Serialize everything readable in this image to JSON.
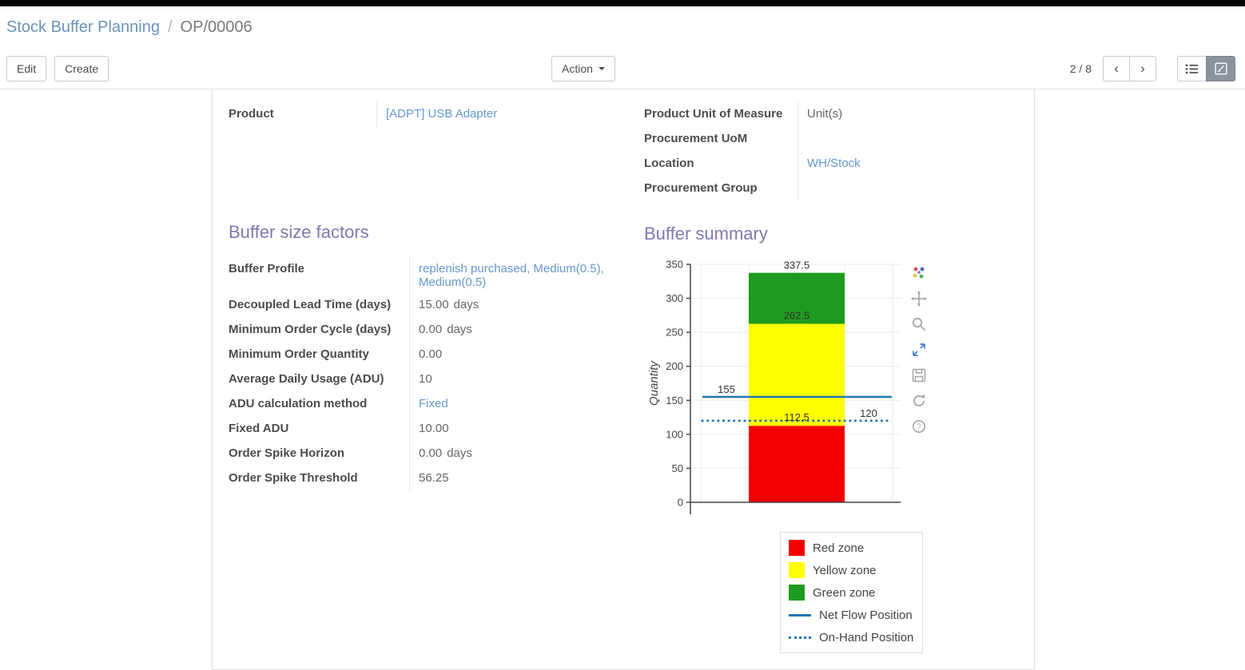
{
  "breadcrumb": {
    "parent": "Stock Buffer Planning",
    "separator": "/",
    "current": "OP/00006"
  },
  "toolbar": {
    "edit_label": "Edit",
    "create_label": "Create",
    "action_label": "Action",
    "pager": "2 / 8",
    "prev_icon": "‹",
    "next_icon": "›"
  },
  "form": {
    "top_left_fields": [
      {
        "label": "Product",
        "value": "[ADPT] USB Adapter",
        "link": true,
        "suffix": ""
      }
    ],
    "top_right_fields": [
      {
        "label": "Product Unit of Measure",
        "value": "Unit(s)",
        "link": false,
        "suffix": ""
      },
      {
        "label": "Procurement UoM",
        "value": "",
        "link": false,
        "suffix": ""
      },
      {
        "label": "Location",
        "value": "WH/Stock",
        "link": true,
        "suffix": ""
      },
      {
        "label": "Procurement Group",
        "value": "",
        "link": false,
        "suffix": ""
      }
    ],
    "buffer_factors": {
      "title": "Buffer size factors",
      "rows": [
        {
          "label": "Buffer Profile",
          "value": "replenish purchased, Medium(0.5), Medium(0.5)",
          "link": true,
          "suffix": ""
        },
        {
          "label": "Decoupled Lead Time (days)",
          "value": "15.00",
          "link": false,
          "suffix": "days"
        },
        {
          "label": "Minimum Order Cycle (days)",
          "value": "0.00",
          "link": false,
          "suffix": "days"
        },
        {
          "label": "Minimum Order Quantity",
          "value": "0.00",
          "link": false,
          "suffix": ""
        },
        {
          "label": "Average Daily Usage (ADU)",
          "value": "10",
          "link": false,
          "suffix": ""
        },
        {
          "label": "ADU calculation method",
          "value": "Fixed",
          "link": true,
          "suffix": ""
        },
        {
          "label": "Fixed ADU",
          "value": "10.00",
          "link": false,
          "suffix": ""
        },
        {
          "label": "Order Spike Horizon",
          "value": "0.00",
          "link": false,
          "suffix": "days"
        },
        {
          "label": "Order Spike Threshold",
          "value": "56.25",
          "link": false,
          "suffix": ""
        }
      ]
    },
    "buffer_summary_title": "Buffer summary"
  },
  "chart_data": {
    "type": "bar",
    "title": "",
    "xlabel": "",
    "ylabel": "Quantity",
    "ylim": [
      0,
      350
    ],
    "yticks": [
      0,
      50,
      100,
      150,
      200,
      250,
      300,
      350
    ],
    "grid": true,
    "zones": [
      {
        "name": "Red zone",
        "from": 0,
        "to": 112.5,
        "color": "#f20000"
      },
      {
        "name": "Yellow zone",
        "from": 112.5,
        "to": 262.5,
        "color": "#ffff00"
      },
      {
        "name": "Green zone",
        "from": 262.5,
        "to": 337.5,
        "color": "#1e9b1e"
      }
    ],
    "lines": [
      {
        "name": "Net Flow Position",
        "value": 155,
        "style": "solid",
        "color": "#1f77b4"
      },
      {
        "name": "On-Hand Position",
        "value": 120,
        "style": "dotted",
        "color": "#1f77b4"
      }
    ],
    "annotations": [
      {
        "text": "337.5",
        "y": 337.5,
        "anchor": "above-bar"
      },
      {
        "text": "262.5",
        "y": 262.5,
        "anchor": "inside-bar"
      },
      {
        "text": "112.5",
        "y": 112.5,
        "anchor": "inside-bar"
      },
      {
        "text": "155",
        "y": 155,
        "anchor": "line-left"
      },
      {
        "text": "120",
        "y": 120,
        "anchor": "line-right"
      }
    ],
    "legend_position": "below-right",
    "legend": [
      {
        "label": "Red zone",
        "swatch": "#f20000",
        "type": "box"
      },
      {
        "label": "Yellow zone",
        "swatch": "#ffff00",
        "type": "box"
      },
      {
        "label": "Green zone",
        "swatch": "#1e9b1e",
        "type": "box"
      },
      {
        "label": "Net Flow Position",
        "swatch": "#1f77b4",
        "type": "line-solid"
      },
      {
        "label": "On-Hand Position",
        "swatch": "#1f77b4",
        "type": "line-dotted"
      }
    ]
  }
}
